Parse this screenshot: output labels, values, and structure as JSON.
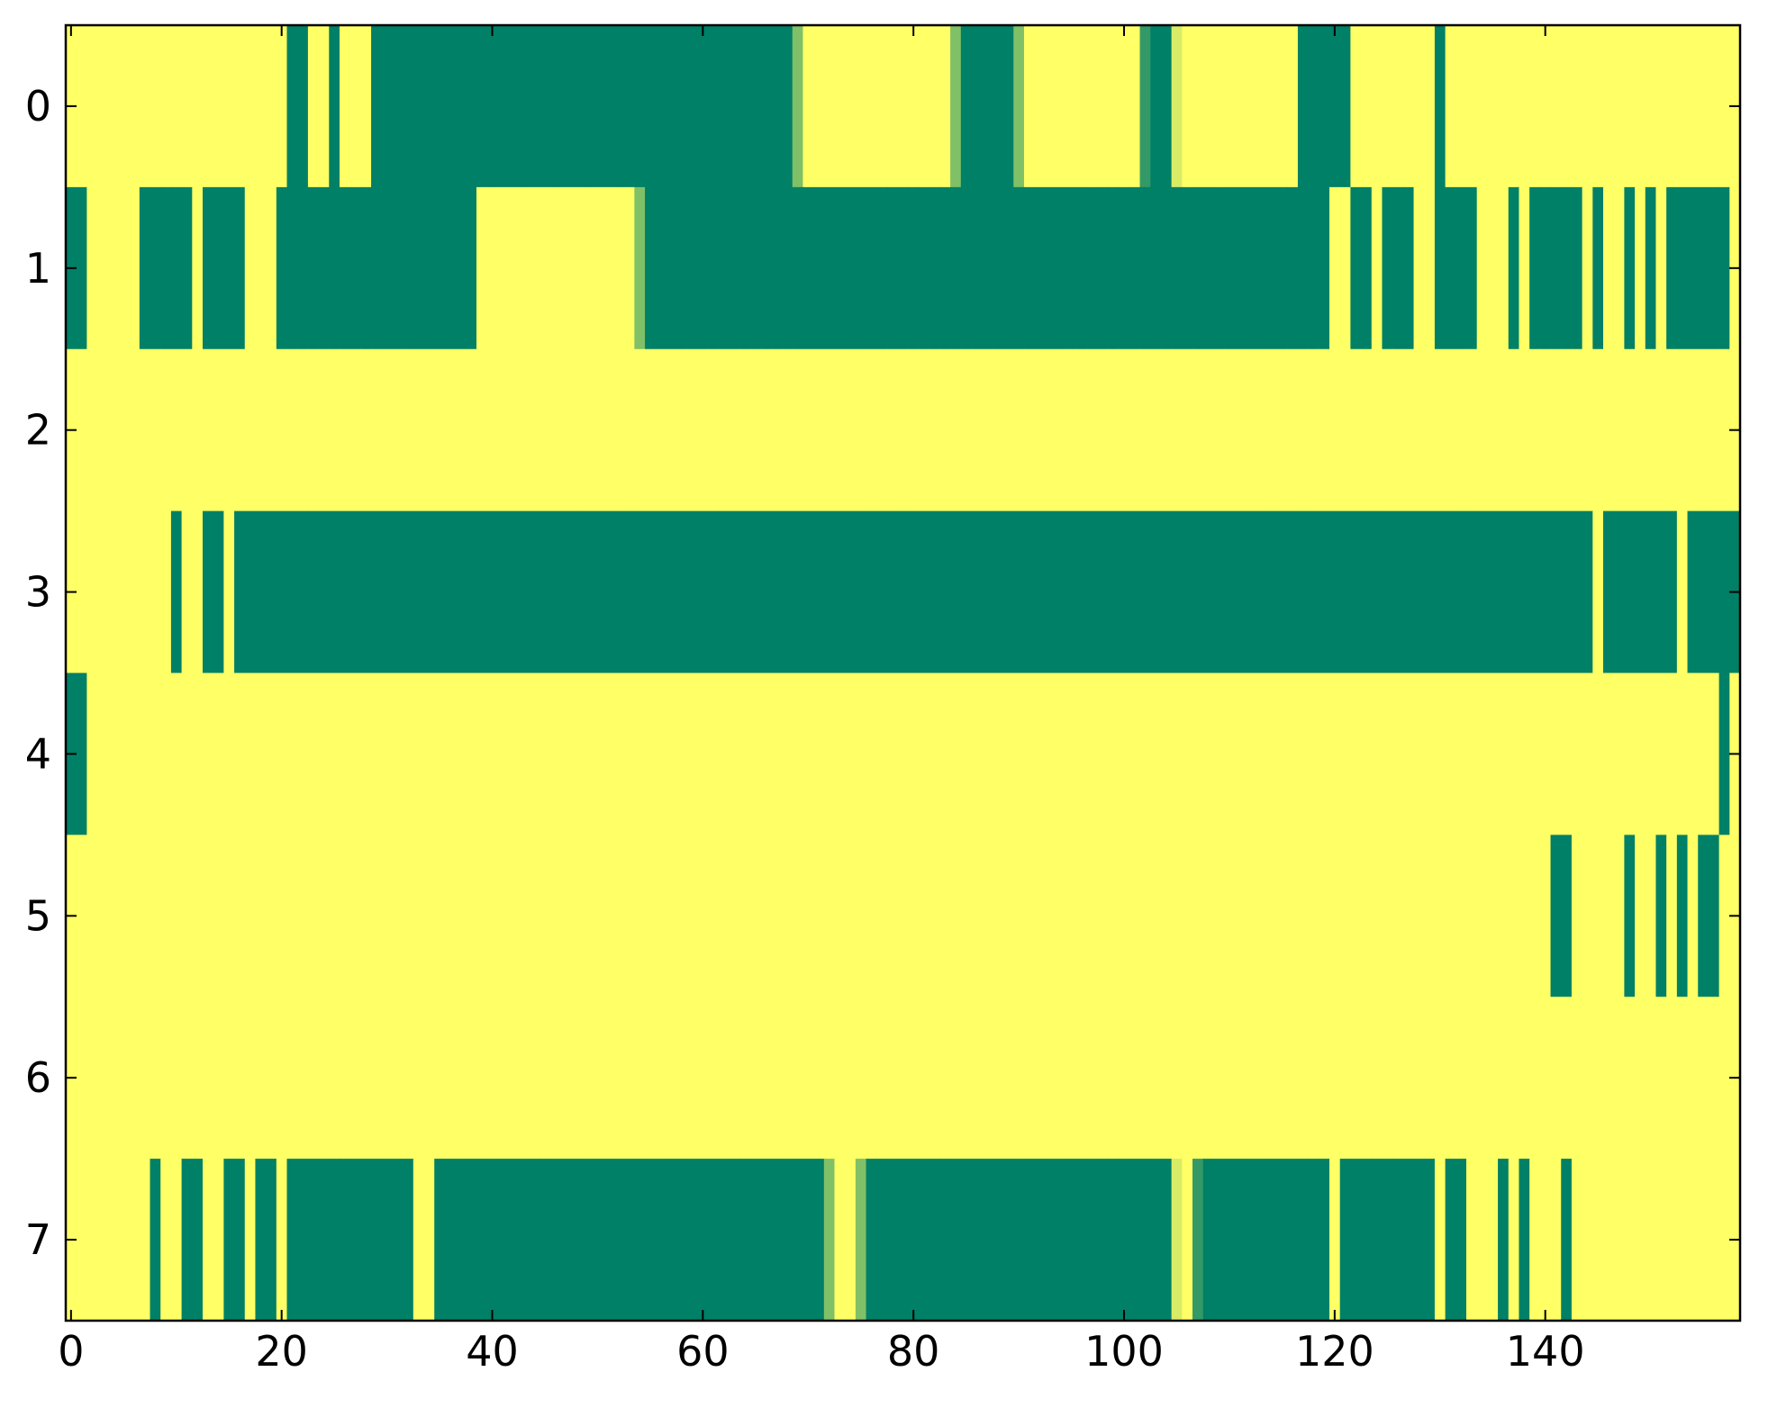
{
  "chart_data": {
    "type": "heatmap",
    "colormap": [
      "#008066",
      "#ffff66"
    ],
    "xlim": [
      -0.5,
      158.5
    ],
    "ylim": [
      7.5,
      -0.5
    ],
    "xticks": [
      0,
      20,
      40,
      60,
      80,
      100,
      120,
      140
    ],
    "yticks": [
      0,
      1,
      2,
      3,
      4,
      5,
      6,
      7
    ],
    "values": [
      [
        1,
        1,
        1,
        1,
        1,
        1,
        1,
        1,
        1,
        1,
        1,
        1,
        1,
        1,
        1,
        1,
        1,
        1,
        1,
        1,
        1,
        0,
        0,
        1,
        1,
        0,
        1,
        1,
        1,
        0,
        0,
        0,
        0,
        0,
        0,
        0,
        0,
        0,
        0,
        0,
        0,
        0,
        0,
        0,
        0,
        0,
        0,
        0,
        0,
        0,
        0,
        0,
        0,
        0,
        0,
        0,
        0,
        0,
        0,
        0,
        0,
        0,
        0,
        0,
        0,
        0,
        0,
        0,
        0,
        0.5,
        1,
        1,
        1,
        1,
        1,
        1,
        1,
        1,
        1,
        1,
        1,
        1,
        1,
        1,
        0.5,
        0,
        0,
        0,
        0,
        0,
        0.5,
        1,
        1,
        1,
        1,
        1,
        1,
        1,
        1,
        1,
        1,
        1,
        0.2,
        0,
        0,
        0.85,
        1,
        1,
        1,
        1,
        1,
        1,
        1,
        1,
        1,
        1,
        1,
        0,
        0,
        0,
        0,
        0,
        1,
        1,
        1,
        1,
        1,
        1,
        1,
        1,
        0,
        1,
        1,
        1,
        1,
        1,
        1,
        1,
        1,
        1,
        1,
        1,
        1,
        1,
        1,
        1,
        1,
        1,
        1,
        1,
        1,
        1,
        1,
        1,
        1,
        1,
        1,
        1,
        1
      ],
      [
        0,
        0,
        1,
        1,
        1,
        1,
        1,
        0,
        0,
        0,
        0,
        0,
        1,
        0,
        0,
        0,
        0,
        1,
        1,
        1,
        0,
        0,
        0,
        0,
        0,
        0,
        0,
        0,
        0,
        0,
        0,
        0,
        0,
        0,
        0,
        0,
        0,
        0,
        0,
        1,
        1,
        1,
        1,
        1,
        1,
        1,
        1,
        1,
        1,
        1,
        1,
        1,
        1,
        1,
        0.5,
        0,
        0,
        0,
        0,
        0,
        0,
        0,
        0,
        0,
        0,
        0,
        0,
        0,
        0,
        0,
        0,
        0,
        0,
        0,
        0,
        0,
        0,
        0,
        0,
        0,
        0,
        0,
        0,
        0,
        0,
        0,
        0,
        0,
        0,
        0,
        0,
        0,
        0,
        0,
        0,
        0,
        0,
        0,
        0,
        0,
        0,
        0,
        0,
        0,
        0,
        0,
        0,
        0,
        0,
        0,
        0,
        0,
        0,
        0,
        0,
        0,
        0,
        0,
        0,
        0,
        1,
        1,
        0,
        0,
        1,
        0,
        0,
        0,
        1,
        1,
        0,
        0,
        0,
        0,
        1,
        1,
        1,
        0,
        1,
        0,
        0,
        0,
        0,
        0,
        1,
        0,
        1,
        1,
        0,
        1,
        0,
        1,
        0,
        0,
        0,
        0,
        0,
        0,
        1
      ],
      [
        1,
        1,
        1,
        1,
        1,
        1,
        1,
        1,
        1,
        1,
        1,
        1,
        1,
        1,
        1,
        1,
        1,
        1,
        1,
        1,
        1,
        1,
        1,
        1,
        1,
        1,
        1,
        1,
        1,
        1,
        1,
        1,
        1,
        1,
        1,
        1,
        1,
        1,
        1,
        1,
        1,
        1,
        1,
        1,
        1,
        1,
        1,
        1,
        1,
        1,
        1,
        1,
        1,
        1,
        1,
        1,
        1,
        1,
        1,
        1,
        1,
        1,
        1,
        1,
        1,
        1,
        1,
        1,
        1,
        1,
        1,
        1,
        1,
        1,
        1,
        1,
        1,
        1,
        1,
        1,
        1,
        1,
        1,
        1,
        1,
        1,
        1,
        1,
        1,
        1,
        1,
        1,
        1,
        1,
        1,
        1,
        1,
        1,
        1,
        1,
        1,
        1,
        1,
        1,
        1,
        1,
        1,
        1,
        1,
        1,
        1,
        1,
        1,
        1,
        1,
        1,
        1,
        1,
        1,
        1,
        1,
        1,
        1,
        1,
        1,
        1,
        1,
        1,
        1,
        1,
        1,
        1,
        1,
        1,
        1,
        1,
        1,
        1,
        1,
        1,
        1,
        1,
        1,
        1,
        1,
        1,
        1,
        1,
        1,
        1,
        1,
        1,
        1,
        1,
        1,
        1,
        1,
        1,
        1
      ],
      [
        1,
        1,
        1,
        1,
        1,
        1,
        1,
        1,
        1,
        1,
        0,
        1,
        1,
        0,
        0,
        1,
        0,
        0,
        0,
        0,
        0,
        0,
        0,
        0,
        0,
        0,
        0,
        0,
        0,
        0,
        0,
        0,
        0,
        0,
        0,
        0,
        0,
        0,
        0,
        0,
        0,
        0,
        0,
        0,
        0,
        0,
        0,
        0,
        0,
        0,
        0,
        0,
        0,
        0,
        0,
        0,
        0,
        0,
        0,
        0,
        0,
        0,
        0,
        0,
        0,
        0,
        0,
        0,
        0,
        0,
        0,
        0,
        0,
        0,
        0,
        0,
        0,
        0,
        0,
        0,
        0,
        0,
        0,
        0,
        0,
        0,
        0,
        0,
        0,
        0,
        0,
        0,
        0,
        0,
        0,
        0,
        0,
        0,
        0,
        0,
        0,
        0,
        0,
        0,
        0,
        0,
        0,
        0,
        0,
        0,
        0,
        0,
        0,
        0,
        0,
        0,
        0,
        0,
        0,
        0,
        0,
        0,
        0,
        0,
        0,
        0,
        0,
        0,
        0,
        0,
        0,
        0,
        0,
        0,
        0,
        0,
        0,
        0,
        0,
        0,
        0,
        0,
        0,
        0,
        0,
        1,
        0,
        0,
        0,
        0,
        0,
        0,
        0,
        1,
        0,
        0,
        0,
        0,
        0
      ],
      [
        0,
        0,
        1,
        1,
        1,
        1,
        1,
        1,
        1,
        1,
        1,
        1,
        1,
        1,
        1,
        1,
        1,
        1,
        1,
        1,
        1,
        1,
        1,
        1,
        1,
        1,
        1,
        1,
        1,
        1,
        1,
        1,
        1,
        1,
        1,
        1,
        1,
        1,
        1,
        1,
        1,
        1,
        1,
        1,
        1,
        1,
        1,
        1,
        1,
        1,
        1,
        1,
        1,
        1,
        1,
        1,
        1,
        1,
        1,
        1,
        1,
        1,
        1,
        1,
        1,
        1,
        1,
        1,
        1,
        1,
        1,
        1,
        1,
        1,
        1,
        1,
        1,
        1,
        1,
        1,
        1,
        1,
        1,
        1,
        1,
        1,
        1,
        1,
        1,
        1,
        1,
        1,
        1,
        1,
        1,
        1,
        1,
        1,
        1,
        1,
        1,
        1,
        1,
        1,
        1,
        1,
        1,
        1,
        1,
        1,
        1,
        1,
        1,
        1,
        1,
        1,
        1,
        1,
        1,
        1,
        1,
        1,
        1,
        1,
        1,
        1,
        1,
        1,
        1,
        1,
        1,
        1,
        1,
        1,
        1,
        1,
        1,
        1,
        1,
        1,
        1,
        1,
        1,
        1,
        1,
        1,
        1,
        1,
        1,
        1,
        1,
        1,
        1,
        1,
        1,
        1,
        1,
        0,
        1
      ],
      [
        1,
        1,
        1,
        1,
        1,
        1,
        1,
        1,
        1,
        1,
        1,
        1,
        1,
        1,
        1,
        1,
        1,
        1,
        1,
        1,
        1,
        1,
        1,
        1,
        1,
        1,
        1,
        1,
        1,
        1,
        1,
        1,
        1,
        1,
        1,
        1,
        1,
        1,
        1,
        1,
        1,
        1,
        1,
        1,
        1,
        1,
        1,
        1,
        1,
        1,
        1,
        1,
        1,
        1,
        1,
        1,
        1,
        1,
        1,
        1,
        1,
        1,
        1,
        1,
        1,
        1,
        1,
        1,
        1,
        1,
        1,
        1,
        1,
        1,
        1,
        1,
        1,
        1,
        1,
        1,
        1,
        1,
        1,
        1,
        1,
        1,
        1,
        1,
        1,
        1,
        1,
        1,
        1,
        1,
        1,
        1,
        1,
        1,
        1,
        1,
        1,
        1,
        1,
        1,
        1,
        1,
        1,
        1,
        1,
        1,
        1,
        1,
        1,
        1,
        1,
        1,
        1,
        1,
        1,
        1,
        1,
        1,
        1,
        1,
        1,
        1,
        1,
        1,
        1,
        1,
        1,
        1,
        1,
        1,
        1,
        1,
        1,
        1,
        1,
        1,
        1,
        0,
        0,
        1,
        1,
        1,
        1,
        1,
        0,
        1,
        1,
        0,
        1,
        0,
        1,
        0,
        0,
        1,
        1
      ],
      [
        1,
        1,
        1,
        1,
        1,
        1,
        1,
        1,
        1,
        1,
        1,
        1,
        1,
        1,
        1,
        1,
        1,
        1,
        1,
        1,
        1,
        1,
        1,
        1,
        1,
        1,
        1,
        1,
        1,
        1,
        1,
        1,
        1,
        1,
        1,
        1,
        1,
        1,
        1,
        1,
        1,
        1,
        1,
        1,
        1,
        1,
        1,
        1,
        1,
        1,
        1,
        1,
        1,
        1,
        1,
        1,
        1,
        1,
        1,
        1,
        1,
        1,
        1,
        1,
        1,
        1,
        1,
        1,
        1,
        1,
        1,
        1,
        1,
        1,
        1,
        1,
        1,
        1,
        1,
        1,
        1,
        1,
        1,
        1,
        1,
        1,
        1,
        1,
        1,
        1,
        1,
        1,
        1,
        1,
        1,
        1,
        1,
        1,
        1,
        1,
        1,
        1,
        1,
        1,
        1,
        1,
        1,
        1,
        1,
        1,
        1,
        1,
        1,
        1,
        1,
        1,
        1,
        1,
        1,
        1,
        1,
        1,
        1,
        1,
        1,
        1,
        1,
        1,
        1,
        1,
        1,
        1,
        1,
        1,
        1,
        1,
        1,
        1,
        1,
        1,
        1,
        1,
        1,
        1,
        1,
        1,
        1,
        1,
        1,
        1,
        1,
        1,
        1,
        1,
        1,
        1,
        1,
        1,
        1
      ],
      [
        1,
        1,
        1,
        1,
        1,
        1,
        1,
        1,
        0,
        1,
        1,
        0,
        0,
        1,
        1,
        0,
        0,
        1,
        0,
        0,
        1,
        0,
        0,
        0,
        0,
        0,
        0,
        0,
        0,
        0,
        0,
        0,
        0,
        1,
        1,
        0,
        0,
        0,
        0,
        0,
        0,
        0,
        0,
        0,
        0,
        0,
        0,
        0,
        0,
        0,
        0,
        0,
        0,
        0,
        0,
        0,
        0,
        0,
        0,
        0,
        0,
        0,
        0,
        0,
        0,
        0,
        0,
        0,
        0,
        0,
        0,
        0,
        0.5,
        1,
        1,
        0.5,
        0,
        0,
        0,
        0,
        0,
        0,
        0,
        0,
        0,
        0,
        0,
        0,
        0,
        0,
        0,
        0,
        0,
        0,
        0,
        0,
        0,
        0,
        0,
        0,
        0,
        0,
        0,
        0,
        0,
        0.85,
        1,
        0.2,
        0,
        0,
        0,
        0,
        0,
        0,
        0,
        0,
        0,
        0,
        0,
        0,
        1,
        0,
        0,
        0,
        0,
        0,
        0,
        0,
        0,
        0,
        1,
        0,
        0,
        1,
        1,
        1,
        0,
        1,
        0,
        1,
        1,
        1,
        0,
        1,
        1,
        1,
        1,
        1,
        1,
        1,
        1,
        1,
        1,
        1,
        1,
        1,
        1,
        1,
        1
      ]
    ]
  }
}
